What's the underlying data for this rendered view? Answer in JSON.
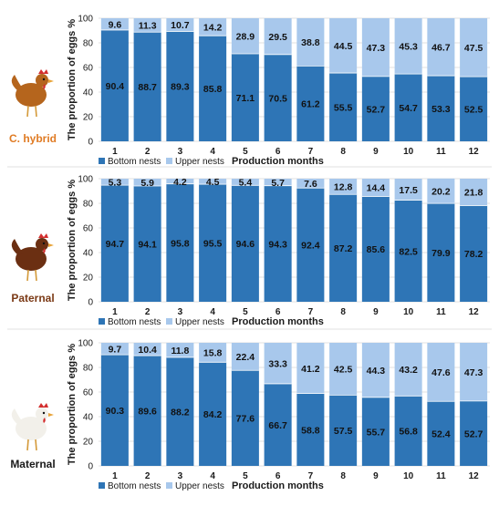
{
  "colors": {
    "bottom": "#2e75b6",
    "upper": "#a8c8ec",
    "hen_label": "#e07b24",
    "dark_label": "#7b3a16",
    "text": "#1a1a1a"
  },
  "chart_data": [
    {
      "type": "bar",
      "stacked": true,
      "hen_label": "C. hybrid",
      "hen_icon": "brown-hen-icon",
      "ylabel": "The proportion of eggs %",
      "xlabel": "Production months",
      "ylim": [
        0,
        100
      ],
      "yticks": [
        "0",
        "20",
        "40",
        "60",
        "80",
        "100"
      ],
      "categories": [
        "1",
        "2",
        "3",
        "4",
        "5",
        "6",
        "7",
        "8",
        "9",
        "10",
        "11",
        "12"
      ],
      "legend_position": "bottom-left",
      "series": [
        {
          "name": "Bottom nests",
          "values": [
            90.4,
            88.7,
            89.3,
            85.8,
            71.1,
            70.5,
            61.2,
            55.5,
            52.7,
            54.7,
            53.3,
            52.5
          ]
        },
        {
          "name": "Upper nests",
          "values": [
            9.6,
            11.3,
            10.7,
            14.2,
            28.9,
            29.5,
            38.8,
            44.5,
            47.3,
            45.3,
            46.7,
            47.5
          ]
        }
      ]
    },
    {
      "type": "bar",
      "stacked": true,
      "hen_label": "Paternal",
      "hen_icon": "dark-brown-hen-icon",
      "ylabel": "The proportion of eggs %",
      "xlabel": "Production months",
      "ylim": [
        0,
        100
      ],
      "yticks": [
        "0",
        "20",
        "40",
        "60",
        "80",
        "100"
      ],
      "categories": [
        "1",
        "2",
        "3",
        "4",
        "5",
        "6",
        "7",
        "8",
        "9",
        "10",
        "11",
        "12"
      ],
      "legend_position": "bottom-left",
      "series": [
        {
          "name": "Bottom nests",
          "values": [
            94.7,
            94.1,
            95.8,
            95.5,
            94.6,
            94.3,
            92.4,
            87.2,
            85.6,
            82.5,
            79.9,
            78.2
          ]
        },
        {
          "name": "Upper nests",
          "values": [
            5.3,
            5.9,
            4.2,
            4.5,
            5.4,
            5.7,
            7.6,
            12.8,
            14.4,
            17.5,
            20.2,
            21.8
          ]
        }
      ]
    },
    {
      "type": "bar",
      "stacked": true,
      "hen_label": "Maternal",
      "hen_icon": "white-hen-icon",
      "ylabel": "The proportion of eggs %",
      "xlabel": "Production months",
      "ylim": [
        0,
        100
      ],
      "yticks": [
        "0",
        "20",
        "40",
        "60",
        "80",
        "100"
      ],
      "categories": [
        "1",
        "2",
        "3",
        "4",
        "5",
        "6",
        "7",
        "8",
        "9",
        "10",
        "11",
        "12"
      ],
      "legend_position": "bottom-left",
      "series": [
        {
          "name": "Bottom nests",
          "values": [
            90.3,
            89.6,
            88.2,
            84.2,
            77.6,
            66.7,
            58.8,
            57.5,
            55.7,
            56.8,
            52.4,
            52.7
          ]
        },
        {
          "name": "Upper nests",
          "values": [
            9.7,
            10.4,
            11.8,
            15.8,
            22.4,
            33.3,
            41.2,
            42.5,
            44.3,
            43.2,
            47.6,
            47.3
          ]
        }
      ]
    }
  ]
}
